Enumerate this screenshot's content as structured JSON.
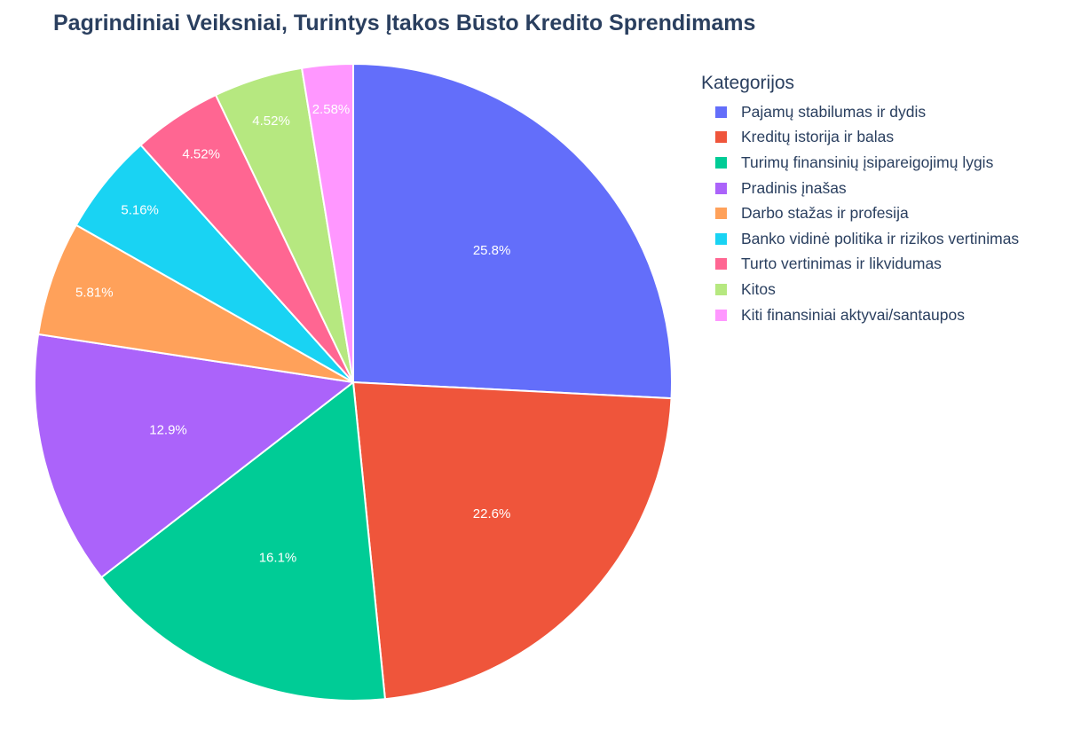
{
  "chart_data": {
    "type": "pie",
    "title": "Pagrindiniai Veiksniai, Turintys Įtakos Būsto Kredito Sprendimams",
    "legend_title": "Kategorijos",
    "legend_position": "right",
    "direction": "clockwise",
    "start": "top",
    "slices": [
      {
        "label": "Pajamų stabilumas ir dydis",
        "value": 25.8,
        "text": "25.8%",
        "color": "#636efa"
      },
      {
        "label": "Kreditų istorija ir balas",
        "value": 22.6,
        "text": "22.6%",
        "color": "#ef553b"
      },
      {
        "label": "Turimų finansinių įsipareigojimų lygis",
        "value": 16.1,
        "text": "16.1%",
        "color": "#00cc96"
      },
      {
        "label": "Pradinis įnašas",
        "value": 12.9,
        "text": "12.9%",
        "color": "#ab63fa"
      },
      {
        "label": "Darbo stažas ir profesija",
        "value": 5.81,
        "text": "5.81%",
        "color": "#ffa15a"
      },
      {
        "label": "Banko vidinė politika ir rizikos vertinimas",
        "value": 5.16,
        "text": "5.16%",
        "color": "#19d3f3"
      },
      {
        "label": "Turto vertinimas ir likvidumas",
        "value": 4.52,
        "text": "4.52%",
        "color": "#ff6692"
      },
      {
        "label": "Kitos",
        "value": 4.52,
        "text": "4.52%",
        "color": "#b6e880"
      },
      {
        "label": "Kiti finansiniai aktyvai/santaupos",
        "value": 2.58,
        "text": "2.58%",
        "color": "#ff97ff"
      }
    ]
  }
}
